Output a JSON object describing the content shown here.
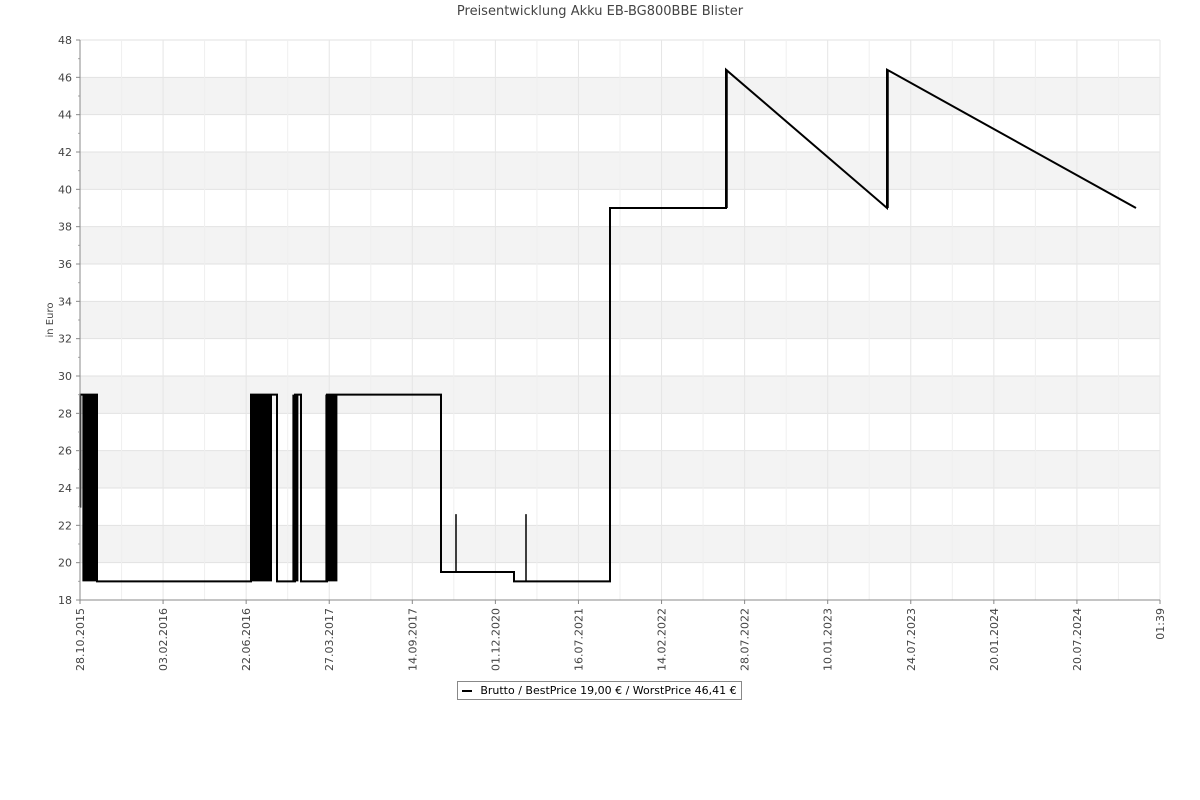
{
  "chart_data": {
    "type": "line",
    "title": "Preisentwicklung Akku EB-BG800BBE Blister",
    "ylabel": "in Euro",
    "xlabel": "",
    "ylim": [
      18,
      48
    ],
    "yticks": [
      18,
      20,
      22,
      24,
      26,
      28,
      30,
      32,
      34,
      36,
      38,
      40,
      42,
      44,
      46,
      48
    ],
    "xticks": [
      "28.10.2015",
      "03.02.2016",
      "22.06.2016",
      "27.03.2017",
      "14.09.2017",
      "01.12.2020",
      "16.07.2021",
      "14.02.2022",
      "28.07.2022",
      "10.01.2023",
      "24.07.2023",
      "20.01.2024",
      "20.07.2024",
      "01:39"
    ],
    "grid": true,
    "legend_position": "bottom",
    "series": [
      {
        "name": "Brutto / BestPrice  19,00 € / WorstPrice  46,41 €",
        "color": "#000000",
        "x": [
          0,
          0.3,
          0.3,
          17,
          17,
          171,
          171,
          197,
          197,
          215,
          215,
          221,
          221,
          247,
          247,
          361,
          361,
          434,
          434,
          530,
          530,
          646,
          646,
          807,
          807,
          1056
        ],
        "y": [
          23,
          23,
          29,
          29,
          19,
          19,
          29,
          29,
          19,
          19,
          29,
          29,
          19,
          19,
          29,
          29,
          19.5,
          19.5,
          19,
          19,
          39,
          39,
          46.41,
          39,
          46.41,
          39
        ],
        "oscillations": [
          {
            "x_from": 3,
            "x_to": 17,
            "low": 19,
            "high": 29
          },
          {
            "x_from": 171,
            "x_to": 192,
            "low": 19,
            "high": 29
          },
          {
            "x_from": 213,
            "x_to": 218,
            "low": 19,
            "high": 29
          },
          {
            "x_from": 246,
            "x_to": 257,
            "low": 19,
            "high": 29
          }
        ],
        "spikes": [
          {
            "x": 376,
            "low": 19.5,
            "high": 22.6
          },
          {
            "x": 446,
            "low": 19,
            "high": 22.6
          },
          {
            "x": 647,
            "low": 39,
            "high": 46.41
          },
          {
            "x": 808,
            "low": 39,
            "high": 46.41
          }
        ]
      }
    ]
  }
}
